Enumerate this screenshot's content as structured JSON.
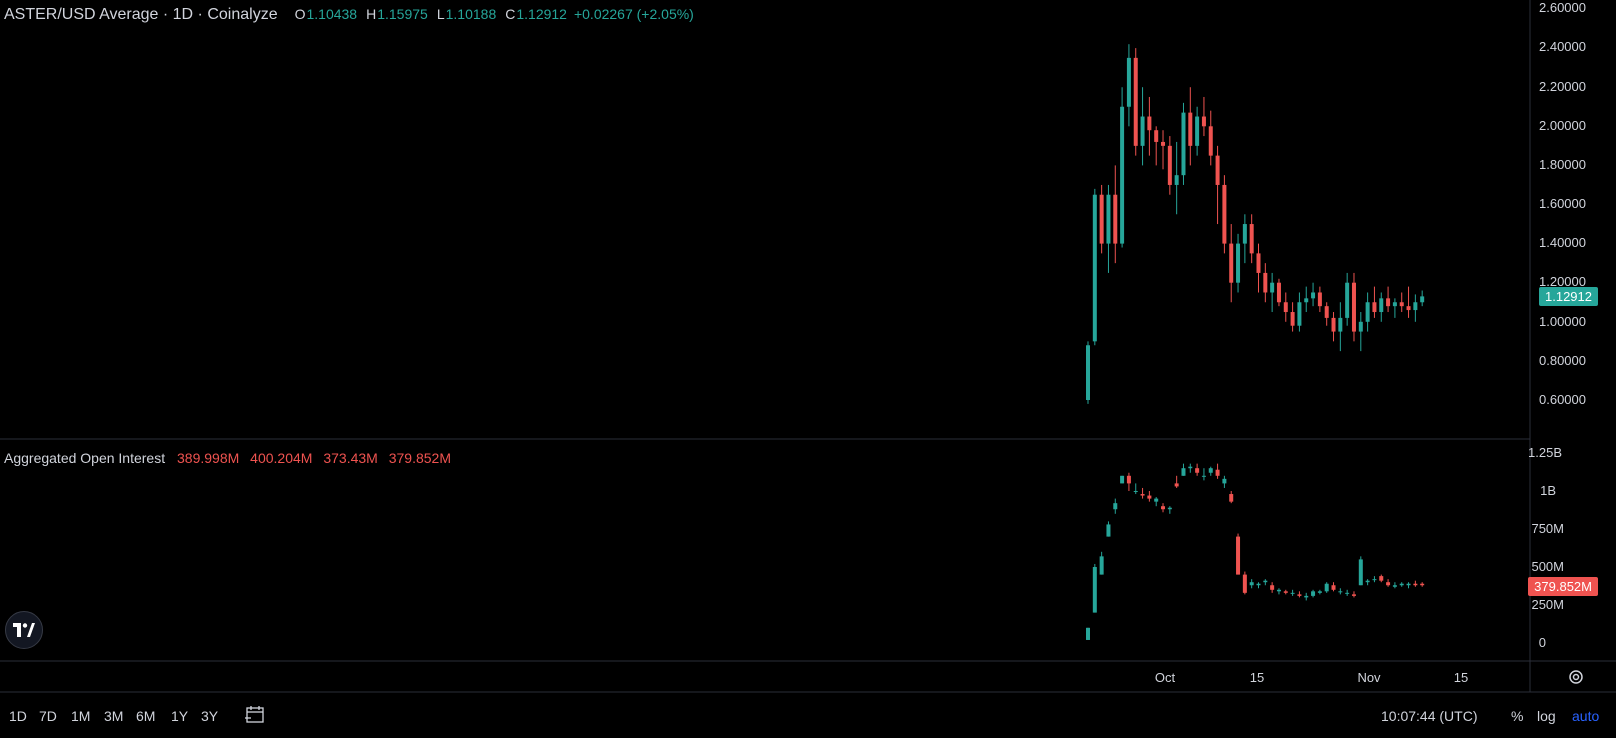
{
  "header": {
    "title": "ASTER/USD Average · 1D · Coinalyze",
    "o_label": "O",
    "o_value": "1.10438",
    "h_label": "H",
    "h_value": "1.15975",
    "l_label": "L",
    "l_value": "1.10188",
    "c_label": "C",
    "c_value": "1.12912",
    "change": "+0.02267 (+2.05%)"
  },
  "oi_header": {
    "title": "Aggregated Open Interest",
    "v1": "389.998M",
    "v2": "400.204M",
    "v3": "373.43M",
    "v4": "379.852M"
  },
  "price_axis": [
    "2.60000",
    "2.40000",
    "2.20000",
    "2.00000",
    "1.80000",
    "1.60000",
    "1.40000",
    "1.20000",
    "1.00000",
    "0.80000",
    "0.60000"
  ],
  "price_badge": "1.12912",
  "oi_axis": [
    "1.25B",
    "1B",
    "750M",
    "500M",
    "250M",
    "0"
  ],
  "oi_badge": "379.852M",
  "time_axis": [
    "Oct",
    "15",
    "Nov",
    "15"
  ],
  "bottom_bar": {
    "timeframes": [
      "1D",
      "7D",
      "1M",
      "3M",
      "6M",
      "1Y",
      "3Y"
    ],
    "clock": "10:07:44 (UTC)",
    "percent": "%",
    "log": "log",
    "auto": "auto"
  },
  "colors": {
    "up": "#26a69a",
    "down": "#ef5350",
    "bg": "#000000",
    "accent": "#2962ff"
  },
  "icons": {
    "logo": "tradingview-logo-icon",
    "settings": "gear-icon",
    "range": "calendar-range-icon"
  },
  "chart_data": [
    {
      "type": "candlestick",
      "title": "ASTER/USD Average · 1D · Coinalyze",
      "ylim": [
        0.5,
        2.65
      ],
      "x_labels": [
        "Oct",
        "15",
        "Nov",
        "15"
      ],
      "ohlc": [
        [
          0.6,
          0.9,
          0.58,
          0.88
        ],
        [
          0.9,
          1.68,
          0.88,
          1.65
        ],
        [
          1.65,
          1.7,
          1.35,
          1.4
        ],
        [
          1.4,
          1.7,
          1.25,
          1.65
        ],
        [
          1.65,
          1.8,
          1.3,
          1.4
        ],
        [
          1.4,
          2.2,
          1.38,
          2.1
        ],
        [
          2.1,
          2.42,
          2.0,
          2.35
        ],
        [
          2.35,
          2.4,
          1.85,
          1.9
        ],
        [
          1.9,
          2.2,
          1.8,
          2.05
        ],
        [
          2.05,
          2.15,
          1.85,
          1.98
        ],
        [
          1.98,
          2.0,
          1.8,
          1.92
        ],
        [
          1.92,
          1.98,
          1.78,
          1.9
        ],
        [
          1.9,
          1.95,
          1.65,
          1.7
        ],
        [
          1.7,
          1.92,
          1.55,
          1.75
        ],
        [
          1.75,
          2.12,
          1.7,
          2.07
        ],
        [
          2.07,
          2.2,
          1.8,
          1.9
        ],
        [
          1.9,
          2.1,
          1.85,
          2.05
        ],
        [
          2.05,
          2.15,
          1.95,
          2.0
        ],
        [
          2.0,
          2.08,
          1.8,
          1.85
        ],
        [
          1.85,
          1.9,
          1.5,
          1.7
        ],
        [
          1.7,
          1.75,
          1.35,
          1.4
        ],
        [
          1.4,
          1.5,
          1.1,
          1.2
        ],
        [
          1.2,
          1.45,
          1.15,
          1.4
        ],
        [
          1.4,
          1.55,
          1.3,
          1.5
        ],
        [
          1.5,
          1.55,
          1.3,
          1.35
        ],
        [
          1.35,
          1.4,
          1.15,
          1.25
        ],
        [
          1.25,
          1.3,
          1.1,
          1.15
        ],
        [
          1.15,
          1.25,
          1.05,
          1.2
        ],
        [
          1.2,
          1.22,
          1.08,
          1.1
        ],
        [
          1.1,
          1.15,
          1.0,
          1.05
        ],
        [
          1.05,
          1.1,
          0.95,
          0.98
        ],
        [
          0.98,
          1.15,
          0.95,
          1.1
        ],
        [
          1.1,
          1.18,
          1.05,
          1.12
        ],
        [
          1.12,
          1.2,
          1.08,
          1.15
        ],
        [
          1.15,
          1.18,
          1.05,
          1.08
        ],
        [
          1.08,
          1.1,
          0.98,
          1.02
        ],
        [
          1.02,
          1.05,
          0.9,
          0.95
        ],
        [
          0.95,
          1.1,
          0.85,
          1.02
        ],
        [
          1.02,
          1.25,
          0.98,
          1.2
        ],
        [
          1.2,
          1.25,
          0.9,
          0.95
        ],
        [
          0.95,
          1.05,
          0.85,
          1.0
        ],
        [
          1.0,
          1.15,
          0.95,
          1.1
        ],
        [
          1.1,
          1.18,
          1.02,
          1.05
        ],
        [
          1.05,
          1.15,
          1.0,
          1.12
        ],
        [
          1.12,
          1.18,
          1.05,
          1.08
        ],
        [
          1.08,
          1.12,
          1.02,
          1.1
        ],
        [
          1.1,
          1.15,
          1.05,
          1.08
        ],
        [
          1.08,
          1.18,
          1.02,
          1.06
        ],
        [
          1.06,
          1.14,
          1.0,
          1.1
        ],
        [
          1.1,
          1.16,
          1.08,
          1.13
        ]
      ]
    },
    {
      "type": "candlestick",
      "title": "Aggregated Open Interest",
      "ylim": [
        0,
        1.3
      ],
      "unit": "B",
      "ohlc": [
        [
          0.02,
          0.1,
          0.02,
          0.1
        ],
        [
          0.2,
          0.52,
          0.2,
          0.5
        ],
        [
          0.45,
          0.6,
          0.45,
          0.57
        ],
        [
          0.7,
          0.8,
          0.7,
          0.78
        ],
        [
          0.88,
          0.95,
          0.85,
          0.92
        ],
        [
          1.05,
          1.1,
          1.05,
          1.1
        ],
        [
          1.1,
          1.12,
          1.0,
          1.05
        ],
        [
          1.0,
          1.05,
          0.98,
          1.0
        ],
        [
          0.98,
          1.02,
          0.95,
          0.97
        ],
        [
          0.97,
          1.0,
          0.93,
          0.95
        ],
        [
          0.93,
          0.96,
          0.9,
          0.95
        ],
        [
          0.9,
          0.92,
          0.86,
          0.88
        ],
        [
          0.88,
          0.9,
          0.85,
          0.89
        ],
        [
          1.05,
          1.1,
          1.02,
          1.03
        ],
        [
          1.1,
          1.18,
          1.1,
          1.15
        ],
        [
          1.15,
          1.18,
          1.12,
          1.16
        ],
        [
          1.15,
          1.18,
          1.1,
          1.12
        ],
        [
          1.1,
          1.15,
          1.07,
          1.1
        ],
        [
          1.12,
          1.16,
          1.1,
          1.15
        ],
        [
          1.14,
          1.18,
          1.08,
          1.1
        ],
        [
          1.05,
          1.1,
          1.02,
          1.08
        ],
        [
          0.98,
          1.0,
          0.92,
          0.93
        ],
        [
          0.7,
          0.72,
          0.45,
          0.45
        ],
        [
          0.45,
          0.47,
          0.32,
          0.33
        ],
        [
          0.38,
          0.42,
          0.36,
          0.4
        ],
        [
          0.38,
          0.4,
          0.36,
          0.39
        ],
        [
          0.4,
          0.42,
          0.38,
          0.41
        ],
        [
          0.38,
          0.4,
          0.33,
          0.35
        ],
        [
          0.34,
          0.36,
          0.32,
          0.35
        ],
        [
          0.34,
          0.35,
          0.32,
          0.33
        ],
        [
          0.33,
          0.35,
          0.31,
          0.33
        ],
        [
          0.32,
          0.34,
          0.3,
          0.31
        ],
        [
          0.3,
          0.33,
          0.28,
          0.31
        ],
        [
          0.31,
          0.35,
          0.3,
          0.34
        ],
        [
          0.33,
          0.35,
          0.32,
          0.34
        ],
        [
          0.34,
          0.4,
          0.33,
          0.39
        ],
        [
          0.38,
          0.4,
          0.34,
          0.35
        ],
        [
          0.34,
          0.36,
          0.32,
          0.34
        ],
        [
          0.33,
          0.35,
          0.31,
          0.33
        ],
        [
          0.32,
          0.34,
          0.3,
          0.31
        ],
        [
          0.38,
          0.57,
          0.38,
          0.55
        ],
        [
          0.4,
          0.42,
          0.38,
          0.41
        ],
        [
          0.42,
          0.44,
          0.4,
          0.42
        ],
        [
          0.44,
          0.45,
          0.4,
          0.41
        ],
        [
          0.4,
          0.42,
          0.37,
          0.38
        ],
        [
          0.37,
          0.4,
          0.36,
          0.38
        ],
        [
          0.38,
          0.4,
          0.37,
          0.39
        ],
        [
          0.38,
          0.4,
          0.36,
          0.39
        ],
        [
          0.39,
          0.41,
          0.37,
          0.38
        ],
        [
          0.39,
          0.4,
          0.37,
          0.38
        ]
      ]
    }
  ]
}
